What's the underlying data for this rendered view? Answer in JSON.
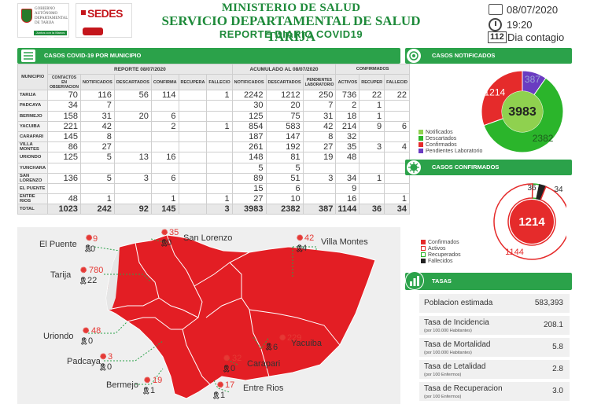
{
  "header": {
    "logo1_lines": [
      "GOBIERNO",
      "AUTÓNOMO",
      "DEPARTAMENTAL",
      "DE TARIJA"
    ],
    "logo1_tagline": "Juntos con la Manos Tarija",
    "logo2_text": "SEDES",
    "title1": "MINISTERIO DE SALUD",
    "title2": "SERVICIO DEPARTAMENTAL DE SALUD TARIJA",
    "title3": "REPORTE DIARIO COVID19",
    "date": "08/07/2020",
    "time": "19:20",
    "day_number": "112",
    "day_label": "Dia contagio"
  },
  "table_section": {
    "title": "CASOS COVID-19 POR MUNICIPIO",
    "reporte_label": "REPORTE  08/07/2020",
    "acumulado_label": "ACUMULADO AL  08/07/2020",
    "confirmados_label": "CONFIRMADOS",
    "columns": {
      "municipio": "MUNICIPIO",
      "contactos": "CONTACTOS EN OBSERVACION",
      "notificados": "NOTIFICADOS",
      "descartados": "DESCARTADOS",
      "confirma": "CONFIRMA",
      "recupera": "RECUPERA",
      "fallecio": "FALLECIO",
      "a_notificados": "NOTIFICADOS",
      "a_descartados": "DESCARTADOS",
      "a_pendientes": "PENDIENTES LABORATORIO",
      "a_activos": "ACTIVOS",
      "a_recuper": "RECUPER",
      "a_fallecid": "FALLECID"
    },
    "rows": [
      {
        "m": "TARIJA",
        "c": [
          "70",
          "116",
          "56",
          "114",
          "",
          "1",
          "2242",
          "1212",
          "250",
          "736",
          "22",
          "22"
        ]
      },
      {
        "m": "PADCAYA",
        "c": [
          "34",
          "7",
          "",
          "",
          "",
          "",
          "30",
          "20",
          "7",
          "2",
          "1",
          ""
        ]
      },
      {
        "m": "BERMEJO",
        "c": [
          "158",
          "31",
          "20",
          "6",
          "",
          "",
          "125",
          "75",
          "31",
          "18",
          "1",
          ""
        ]
      },
      {
        "m": "YACUIBA",
        "c": [
          "221",
          "42",
          "",
          "2",
          "",
          "1",
          "854",
          "583",
          "42",
          "214",
          "9",
          "6"
        ]
      },
      {
        "m": "CARAPARI",
        "c": [
          "145",
          "8",
          "",
          "",
          "",
          "",
          "187",
          "147",
          "8",
          "32",
          "",
          ""
        ]
      },
      {
        "m": "VILLA MONTES",
        "c": [
          "86",
          "27",
          "",
          "",
          "",
          "",
          "261",
          "192",
          "27",
          "35",
          "3",
          "4"
        ]
      },
      {
        "m": "URIONDO",
        "c": [
          "125",
          "5",
          "13",
          "16",
          "",
          "",
          "148",
          "81",
          "19",
          "48",
          "",
          ""
        ]
      },
      {
        "m": "YUNCHARA",
        "c": [
          "",
          "",
          "",
          "",
          "",
          "",
          "5",
          "5",
          "",
          "",
          "",
          ""
        ]
      },
      {
        "m": "SAN LORENZO",
        "c": [
          "136",
          "5",
          "3",
          "6",
          "",
          "",
          "89",
          "51",
          "3",
          "34",
          "1",
          ""
        ]
      },
      {
        "m": "EL PUENTE",
        "c": [
          "",
          "",
          "",
          "",
          "",
          "",
          "15",
          "6",
          "",
          "9",
          "",
          ""
        ]
      },
      {
        "m": "ENTRE RIOS",
        "c": [
          "48",
          "1",
          "",
          "1",
          "",
          "1",
          "27",
          "10",
          "",
          "16",
          "",
          "1"
        ]
      }
    ],
    "total": {
      "m": "TOTAL",
      "c": [
        "1023",
        "242",
        "92",
        "145",
        "",
        "3",
        "3983",
        "2382",
        "387",
        "1144",
        "36",
        "34"
      ]
    }
  },
  "map": {
    "places": [
      {
        "name": "El Puente",
        "cases": "9",
        "deaths": "0"
      },
      {
        "name": "San Lorenzo",
        "cases": "35",
        "deaths": "0"
      },
      {
        "name": "Villa Montes",
        "cases": "42",
        "deaths": "4"
      },
      {
        "name": "Tarija",
        "cases": "780",
        "deaths": "22"
      },
      {
        "name": "Uriondo",
        "cases": "48",
        "deaths": "0"
      },
      {
        "name": "Yacuiba",
        "cases": "229",
        "deaths": "6"
      },
      {
        "name": "Padcaya",
        "cases": "3",
        "deaths": "0"
      },
      {
        "name": "Carapari",
        "cases": "32",
        "deaths": "0"
      },
      {
        "name": "Bermejo",
        "cases": "19",
        "deaths": "1"
      },
      {
        "name": "Entre Rios",
        "cases": "17",
        "deaths": "1"
      }
    ],
    "colors": {
      "land": "#e31e24",
      "border": "#ffffff"
    }
  },
  "notificados": {
    "title": "CASOS NOTIFICADOS",
    "total": "3983",
    "legend": [
      "Notificados",
      "Descartados",
      "Confirmados",
      "Pendientes Laboratorio"
    ],
    "colors": {
      "descartados": "#2bb52b",
      "confirmados": "#e52b2b",
      "pendientes": "#6a3cc1",
      "notificados": "#8fd14f"
    },
    "chart_data": {
      "type": "pie",
      "categories": [
        "Descartados",
        "Confirmados",
        "Pendientes Laboratorio"
      ],
      "values": [
        2382,
        1214,
        387
      ],
      "labels": [
        "2382",
        "1214",
        "387"
      ]
    }
  },
  "confirmados": {
    "title": "CASOS CONFIRMADOS",
    "total": "1214",
    "legend": [
      "Confirmados",
      "Activos",
      "Recuperados",
      "Fallecidos"
    ],
    "chart_data": {
      "type": "pie",
      "categories": [
        "Activos",
        "Recuperados",
        "Fallecidos"
      ],
      "values": [
        1144,
        36,
        34
      ],
      "labels": [
        "1144",
        "36",
        "34"
      ]
    }
  },
  "tasas": {
    "title": "TASAS",
    "rows": [
      {
        "label": "Poblacion estimada",
        "sub": "",
        "value": "583,393"
      },
      {
        "label": "Tasa de Incidencia",
        "sub": "(por 100.000 Habitantes)",
        "value": "208.1"
      },
      {
        "label": "Tasa de Mortalidad",
        "sub": "(por 100.000 Habitantes)",
        "value": "5.8"
      },
      {
        "label": "Tasa de Letalidad",
        "sub": "(por 100 Enfermos)",
        "value": "2.8"
      },
      {
        "label": "Tasa de Recuperacion",
        "sub": "(por 100 Enfermos)",
        "value": "3.0"
      }
    ]
  }
}
